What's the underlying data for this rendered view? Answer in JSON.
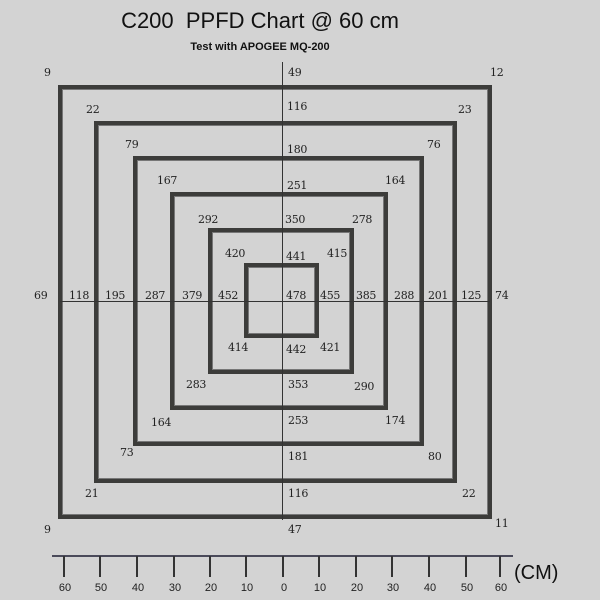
{
  "title": "C200  PPFD Chart @ 60 cm",
  "subtitle": "Test with APOGEE MQ-200",
  "readings": {
    "top": [
      "9",
      "49",
      "12",
      "22",
      "116",
      "23",
      "79",
      "180",
      "76",
      "167",
      "251",
      "164",
      "292",
      "350",
      "278",
      "420",
      "441",
      "415"
    ],
    "middle": [
      "69",
      "118",
      "195",
      "287",
      "379",
      "452",
      "478",
      "455",
      "385",
      "288",
      "201",
      "125",
      "74"
    ],
    "bottom": [
      "414",
      "442",
      "421",
      "283",
      "353",
      "290",
      "164",
      "253",
      "174",
      "73",
      "181",
      "80",
      "21",
      "116",
      "22",
      "9",
      "47",
      "11"
    ]
  },
  "scale": {
    "ticks": [
      "60",
      "50",
      "40",
      "30",
      "20",
      "10",
      "0",
      "10",
      "20",
      "30",
      "40",
      "50",
      "60"
    ],
    "unit": "(CM)"
  },
  "colors": {
    "background": "#d3d3d3",
    "lines": "#3c3c3a"
  }
}
